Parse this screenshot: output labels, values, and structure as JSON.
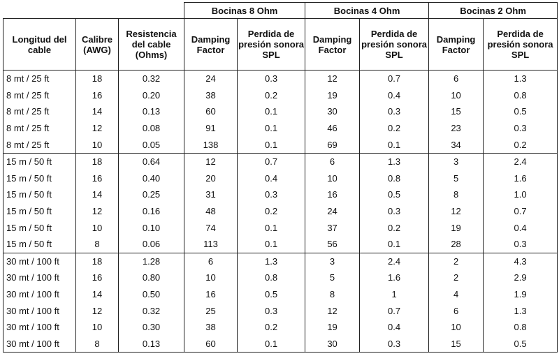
{
  "groups": [
    "Bocinas 8 Ohm",
    "Bocinas 4 Ohm",
    "Bocinas 2 Ohm"
  ],
  "headers": {
    "length": "Longitud del\ncable",
    "gauge": "Calibre\n(AWG)",
    "resistance": "Resistencia\ndel cable\n(Ohms)",
    "damping": "Damping\nFactor",
    "spl": "Perdida de\npresión sonora\nSPL"
  },
  "sections": [
    {
      "rows": [
        [
          "8 mt / 25 ft",
          "18",
          "0.32",
          "24",
          "0.3",
          "12",
          "0.7",
          "6",
          "1.3"
        ],
        [
          "8 mt / 25 ft",
          "16",
          "0.20",
          "38",
          "0.2",
          "19",
          "0.4",
          "10",
          "0.8"
        ],
        [
          "8 mt / 25 ft",
          "14",
          "0.13",
          "60",
          "0.1",
          "30",
          "0.3",
          "15",
          "0.5"
        ],
        [
          "8 mt / 25 ft",
          "12",
          "0.08",
          "91",
          "0.1",
          "46",
          "0.2",
          "23",
          "0.3"
        ],
        [
          "8 mt / 25 ft",
          "10",
          "0.05",
          "138",
          "0.1",
          "69",
          "0.1",
          "34",
          "0.2"
        ]
      ]
    },
    {
      "rows": [
        [
          "15 m / 50 ft",
          "18",
          "0.64",
          "12",
          "0.7",
          "6",
          "1.3",
          "3",
          "2.4"
        ],
        [
          "15 m / 50 ft",
          "16",
          "0.40",
          "20",
          "0.4",
          "10",
          "0.8",
          "5",
          "1.6"
        ],
        [
          "15 m / 50 ft",
          "14",
          "0.25",
          "31",
          "0.3",
          "16",
          "0.5",
          "8",
          "1.0"
        ],
        [
          "15 m / 50 ft",
          "12",
          "0.16",
          "48",
          "0.2",
          "24",
          "0.3",
          "12",
          "0.7"
        ],
        [
          "15 m / 50 ft",
          "10",
          "0.10",
          "74",
          "0.1",
          "37",
          "0.2",
          "19",
          "0.4"
        ],
        [
          "15 m / 50 ft",
          "8",
          "0.06",
          "113",
          "0.1",
          "56",
          "0.1",
          "28",
          "0.3"
        ]
      ]
    },
    {
      "rows": [
        [
          "30 mt / 100 ft",
          "18",
          "1.28",
          "6",
          "1.3",
          "3",
          "2.4",
          "2",
          "4.3"
        ],
        [
          "30 mt / 100 ft",
          "16",
          "0.80",
          "10",
          "0.8",
          "5",
          "1.6",
          "2",
          "2.9"
        ],
        [
          "30 mt / 100 ft",
          "14",
          "0.50",
          "16",
          "0.5",
          "8",
          "1",
          "4",
          "1.9"
        ],
        [
          "30 mt / 100 ft",
          "12",
          "0.32",
          "25",
          "0.3",
          "12",
          "0.7",
          "6",
          "1.3"
        ],
        [
          "30 mt / 100 ft",
          "10",
          "0.30",
          "38",
          "0.2",
          "19",
          "0.4",
          "10",
          "0.8"
        ],
        [
          "30 mt / 100 ft",
          "8",
          "0.13",
          "60",
          "0.1",
          "30",
          "0.3",
          "15",
          "0.5"
        ]
      ]
    }
  ]
}
